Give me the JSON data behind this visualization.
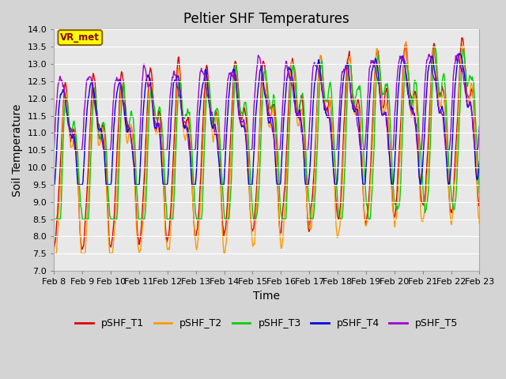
{
  "title": "Peltier SHF Temperatures",
  "xlabel": "Time",
  "ylabel": "Soil Temperature",
  "ylim": [
    7.0,
    14.0
  ],
  "yticks": [
    7.0,
    7.5,
    8.0,
    8.5,
    9.0,
    9.5,
    10.0,
    10.5,
    11.0,
    11.5,
    12.0,
    12.5,
    13.0,
    13.5,
    14.0
  ],
  "xtick_labels": [
    "Feb 8",
    "Feb 9",
    "Feb 10",
    "Feb 11",
    "Feb 12",
    "Feb 13",
    "Feb 14",
    "Feb 15",
    "Feb 16",
    "Feb 17",
    "Feb 18",
    "Feb 19",
    "Feb 20",
    "Feb 21",
    "Feb 22",
    "Feb 23"
  ],
  "series_names": [
    "pSHF_T1",
    "pSHF_T2",
    "pSHF_T3",
    "pSHF_T4",
    "pSHF_T5"
  ],
  "series_colors": [
    "#dd0000",
    "#ff9900",
    "#00cc00",
    "#0000dd",
    "#9900cc"
  ],
  "line_width": 1.0,
  "fig_bg_color": "#d4d4d4",
  "plot_bg_color": "#e8e8e8",
  "grid_color": "#ffffff",
  "annotation_text": "VR_met",
  "annotation_bg": "#ffff00",
  "annotation_border": "#8b6400",
  "title_fontsize": 12,
  "axis_label_fontsize": 10,
  "tick_fontsize": 8,
  "legend_fontsize": 9
}
